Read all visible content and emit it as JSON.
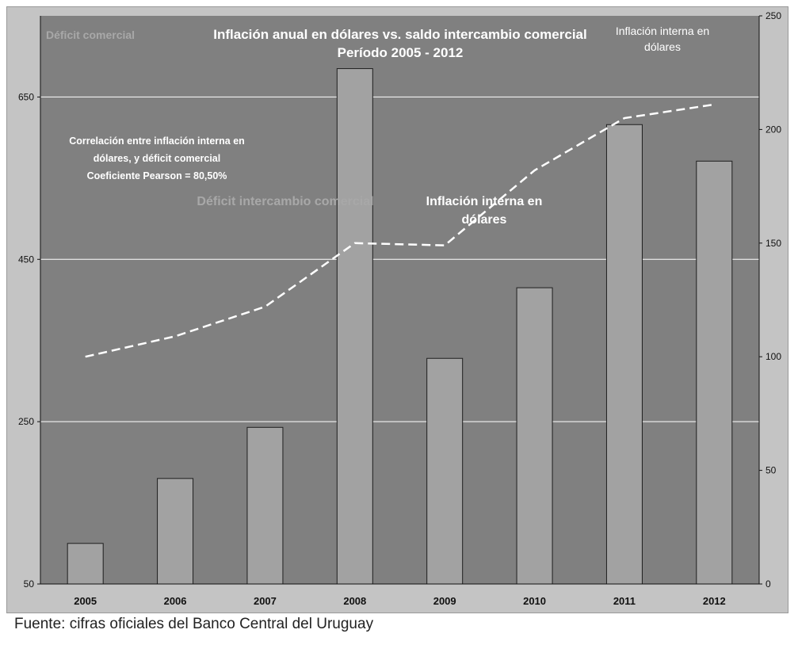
{
  "chart_data": {
    "type": "bar",
    "title": "Inflación anual en dólares vs. saldo intercambio comercial",
    "subtitle": "Período 2005 - 2012",
    "categories": [
      "2005",
      "2006",
      "2007",
      "2008",
      "2009",
      "2010",
      "2011",
      "2012"
    ],
    "series": [
      {
        "name": "Déficit intercambio comercial",
        "type": "bar",
        "axis": "left",
        "values": [
          100,
          180,
          243,
          685,
          328,
          415,
          616,
          571
        ]
      },
      {
        "name": "Inflación interna en dólares",
        "type": "line",
        "style": "dashed",
        "axis": "right",
        "values": [
          100,
          109,
          122,
          150,
          149,
          182,
          205,
          211
        ]
      }
    ],
    "left_axis": {
      "label": "Déficit comercial",
      "min": 50,
      "max": 750,
      "ticks": [
        50,
        250,
        450,
        650
      ]
    },
    "right_axis": {
      "label": "Inflación interna en dólares",
      "min": 0,
      "max": 250,
      "ticks": [
        0,
        50,
        100,
        150,
        200,
        250
      ]
    },
    "annotation": {
      "lines": [
        "Correlación entre inflación interna en",
        "dólares, y déficit comercial",
        "Coeficiente Pearson = 80,50%"
      ]
    },
    "series_labels": {
      "bar": "Déficit intercambio comercial",
      "line_lines": [
        "Inflación interna en",
        "dólares"
      ]
    },
    "right_axis_title_lines": [
      "Inflación interna en",
      "dólares"
    ],
    "grid": "horizontal",
    "colors": {
      "frame_bg": "#c4c4c4",
      "plot_bg": "#808080",
      "bar_fill": "#a2a2a2",
      "bar_stroke": "#1e1e1e",
      "line": "#ffffff",
      "grid": "#ffffff",
      "title": "#ffffff",
      "faint_label": "#a8a8a8"
    }
  },
  "source": "Fuente: cifras oficiales del Banco Central del Uruguay"
}
